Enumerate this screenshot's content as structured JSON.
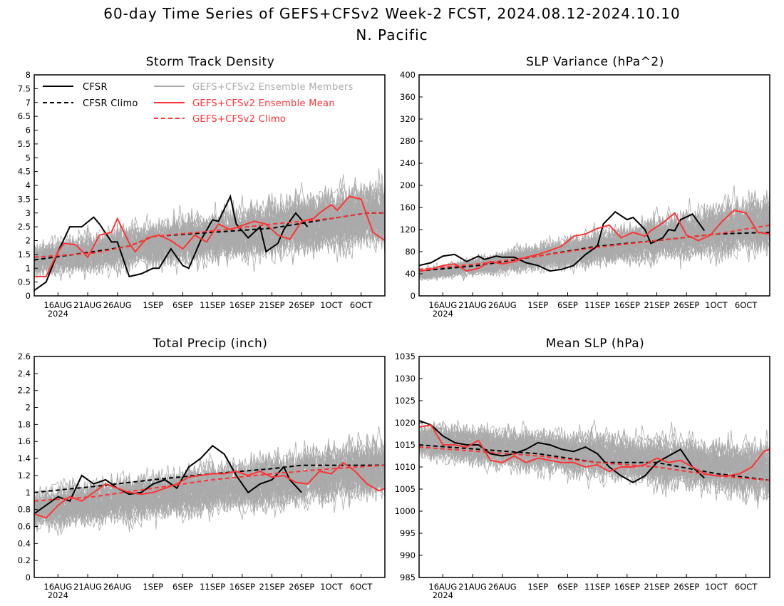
{
  "figure": {
    "title_line1": "60-day Time Series of GEFS+CFSv2 Week-2 FCST, 2024.08.12-2024.10.10",
    "title_line2": "N. Pacific"
  },
  "colors": {
    "cfsr": "#000000",
    "members": "#aaaaaa",
    "ens_mean": "#ff3333",
    "frame": "#000000"
  },
  "legend": {
    "cfsr": "CFSR",
    "cfsr_climo": "CFSR Climo",
    "members": "GEFS+CFSv2 Ensemble Members",
    "ens_mean": "GEFS+CFSv2 Ensemble Mean",
    "ens_climo": "GEFS+CFSv2 Climo"
  },
  "x_axis": {
    "tick_labels": [
      "16AUG",
      "21AUG",
      "26AUG",
      "1SEP",
      "6SEP",
      "11SEP",
      "16SEP",
      "21SEP",
      "26SEP",
      "1OCT",
      "6OCT"
    ],
    "tick_days": [
      4,
      9,
      14,
      20,
      25,
      30,
      35,
      40,
      45,
      50,
      55
    ],
    "year_label": "2024",
    "day_range": [
      0,
      59
    ]
  },
  "chart_data": [
    {
      "type": "line",
      "title": "Storm Track Density",
      "ylim": [
        0,
        8
      ],
      "yticks": [
        "0",
        "0.5",
        "1",
        "1.5",
        "2",
        "2.5",
        "3",
        "3.5",
        "4",
        "4.5",
        "5",
        "5.5",
        "6",
        "6.5",
        "7",
        "7.5",
        "8"
      ],
      "ytick_values": [
        0,
        0.5,
        1,
        1.5,
        2,
        2.5,
        3,
        3.5,
        4,
        4.5,
        5,
        5.5,
        6,
        6.5,
        7,
        7.5,
        8
      ],
      "members_band": {
        "center": [
          1.3,
          3.0
        ],
        "spread_start": 0.8,
        "spread_end": 1.6
      },
      "series": [
        {
          "role": "cfsr",
          "x": [
            0,
            2,
            4,
            6,
            8,
            10,
            11,
            13,
            14,
            16,
            18,
            20,
            21,
            23,
            25,
            26,
            28,
            30,
            31,
            33,
            34,
            36,
            38,
            39,
            41,
            42,
            44,
            46
          ],
          "y": [
            0.2,
            0.5,
            1.6,
            2.5,
            2.5,
            2.85,
            2.6,
            1.95,
            1.95,
            0.7,
            0.8,
            1.0,
            1.0,
            1.7,
            1.1,
            1.0,
            2.0,
            2.75,
            2.7,
            3.6,
            2.6,
            2.1,
            2.5,
            1.6,
            1.9,
            2.4,
            3.0,
            2.5
          ]
        },
        {
          "role": "cfsr_climo",
          "x": [
            0,
            10,
            16,
            20,
            30,
            40,
            50,
            56,
            59
          ],
          "y": [
            1.3,
            1.6,
            1.8,
            2.15,
            2.3,
            2.45,
            2.8,
            3.0,
            3.0
          ]
        },
        {
          "role": "ens_mean",
          "x": [
            0,
            2,
            4,
            5,
            7,
            9,
            11,
            13,
            14,
            16,
            17,
            19,
            21,
            23,
            25,
            27,
            29,
            31,
            33,
            35,
            37,
            39,
            41,
            43,
            45,
            47,
            48,
            50,
            51,
            53,
            55,
            57,
            59
          ],
          "y": [
            0.7,
            0.7,
            1.6,
            1.9,
            1.85,
            1.4,
            2.2,
            2.3,
            2.8,
            1.9,
            1.6,
            2.1,
            2.2,
            2.0,
            1.7,
            2.2,
            1.95,
            2.6,
            2.4,
            2.55,
            2.7,
            2.6,
            2.2,
            2.05,
            2.7,
            2.8,
            3.0,
            3.3,
            3.1,
            3.6,
            3.5,
            2.3,
            2.0
          ]
        },
        {
          "role": "ens_climo",
          "x": [
            0,
            10,
            16,
            20,
            30,
            40,
            50,
            56,
            59
          ],
          "y": [
            1.4,
            1.55,
            1.8,
            2.15,
            2.35,
            2.6,
            2.8,
            3.0,
            3.0
          ]
        }
      ]
    },
    {
      "type": "line",
      "title": "SLP Variance (hPa^2)",
      "ylim": [
        0,
        400
      ],
      "yticks": [
        "0",
        "40",
        "80",
        "120",
        "160",
        "200",
        "240",
        "280",
        "320",
        "360",
        "400"
      ],
      "ytick_values": [
        0,
        40,
        80,
        120,
        160,
        200,
        240,
        280,
        320,
        360,
        400
      ],
      "members_band": {
        "center": [
          38,
          135
        ],
        "spread_start": 12,
        "spread_end": 70
      },
      "series": [
        {
          "role": "cfsr",
          "x": [
            0,
            2,
            4,
            6,
            8,
            10,
            11,
            13,
            14,
            16,
            18,
            20,
            22,
            24,
            26,
            28,
            30,
            31,
            33,
            35,
            36,
            38,
            39,
            41,
            42,
            43,
            44,
            46,
            48
          ],
          "y": [
            55,
            60,
            72,
            75,
            62,
            72,
            66,
            72,
            70,
            70,
            60,
            55,
            45,
            48,
            55,
            75,
            90,
            130,
            152,
            138,
            142,
            120,
            95,
            105,
            120,
            118,
            138,
            148,
            118
          ]
        },
        {
          "role": "cfsr_climo",
          "x": [
            0,
            10,
            20,
            30,
            40,
            50,
            59
          ],
          "y": [
            45,
            55,
            72,
            90,
            100,
            112,
            115
          ]
        },
        {
          "role": "ens_mean",
          "x": [
            0,
            2,
            4,
            6,
            8,
            10,
            12,
            14,
            16,
            18,
            20,
            22,
            24,
            26,
            28,
            30,
            32,
            34,
            36,
            38,
            39,
            41,
            43,
            45,
            47,
            49,
            51,
            53,
            55,
            57,
            59
          ],
          "y": [
            45,
            48,
            55,
            58,
            45,
            50,
            62,
            58,
            62,
            70,
            75,
            82,
            90,
            108,
            112,
            122,
            128,
            105,
            115,
            108,
            118,
            132,
            150,
            110,
            100,
            110,
            135,
            155,
            150,
            115,
            112
          ]
        },
        {
          "role": "ens_climo",
          "x": [
            0,
            10,
            20,
            30,
            40,
            50,
            59
          ],
          "y": [
            48,
            58,
            72,
            88,
            100,
            112,
            128
          ]
        }
      ]
    },
    {
      "type": "line",
      "title": "Total Precip (inch)",
      "ylim": [
        0,
        2.6
      ],
      "yticks": [
        "0",
        "0.2",
        "0.4",
        "0.6",
        "0.8",
        "1",
        "1.2",
        "1.4",
        "1.6",
        "1.8",
        "2",
        "2.2",
        "2.4",
        "2.6"
      ],
      "ytick_values": [
        0,
        0.2,
        0.4,
        0.6,
        0.8,
        1,
        1.2,
        1.4,
        1.6,
        1.8,
        2,
        2.2,
        2.4,
        2.6
      ],
      "members_band": {
        "center": [
          0.8,
          1.3
        ],
        "spread_start": 0.3,
        "spread_end": 0.45
      },
      "series": [
        {
          "role": "cfsr",
          "x": [
            0,
            2,
            4,
            6,
            8,
            10,
            12,
            14,
            16,
            18,
            20,
            22,
            24,
            26,
            28,
            30,
            32,
            34,
            36,
            38,
            40,
            42,
            43,
            45
          ],
          "y": [
            0.75,
            0.85,
            0.95,
            0.9,
            1.2,
            1.1,
            1.15,
            1.05,
            0.98,
            1.0,
            1.1,
            1.15,
            1.05,
            1.3,
            1.4,
            1.55,
            1.45,
            1.2,
            1.0,
            1.1,
            1.15,
            1.3,
            1.15,
            1.0
          ]
        },
        {
          "role": "cfsr_climo",
          "x": [
            0,
            10,
            20,
            30,
            40,
            45,
            50,
            59
          ],
          "y": [
            1.0,
            1.07,
            1.15,
            1.22,
            1.28,
            1.32,
            1.32,
            1.32
          ]
        },
        {
          "role": "ens_mean",
          "x": [
            0,
            2,
            4,
            6,
            8,
            10,
            12,
            14,
            16,
            18,
            20,
            22,
            24,
            26,
            28,
            30,
            32,
            34,
            36,
            38,
            40,
            42,
            44,
            46,
            48,
            50,
            52,
            54,
            56,
            58,
            59
          ],
          "y": [
            0.75,
            0.7,
            0.85,
            0.95,
            0.9,
            1.0,
            1.1,
            1.05,
            1.0,
            0.98,
            1.0,
            1.05,
            1.1,
            1.18,
            1.2,
            1.22,
            1.22,
            1.25,
            1.2,
            1.25,
            1.18,
            1.2,
            1.12,
            1.1,
            1.25,
            1.22,
            1.35,
            1.25,
            1.1,
            1.02,
            1.05
          ]
        },
        {
          "role": "ens_climo",
          "x": [
            0,
            10,
            20,
            30,
            40,
            50,
            59
          ],
          "y": [
            0.9,
            0.95,
            1.05,
            1.15,
            1.22,
            1.28,
            1.32
          ]
        }
      ]
    },
    {
      "type": "line",
      "title": "Mean SLP (hPa)",
      "ylim": [
        985,
        1035
      ],
      "yticks": [
        "985",
        "990",
        "995",
        "1000",
        "1005",
        "1010",
        "1015",
        "1020",
        "1025",
        "1030",
        "1035"
      ],
      "ytick_values": [
        985,
        990,
        995,
        1000,
        1005,
        1010,
        1015,
        1020,
        1025,
        1030,
        1035
      ],
      "members_band": {
        "center": [
          1016,
          1009
        ],
        "spread_start": 5,
        "spread_end": 8
      },
      "series": [
        {
          "role": "cfsr",
          "x": [
            0,
            2,
            4,
            6,
            8,
            10,
            12,
            14,
            16,
            18,
            20,
            22,
            24,
            26,
            28,
            30,
            32,
            34,
            36,
            38,
            40,
            42,
            44,
            46,
            48
          ],
          "y": [
            1020.5,
            1019.5,
            1017,
            1015.5,
            1015,
            1015,
            1013,
            1012.5,
            1013,
            1014,
            1015.5,
            1015,
            1014,
            1013.5,
            1014.5,
            1013,
            1010,
            1008,
            1006.5,
            1008,
            1011,
            1012.5,
            1014,
            1010,
            1007.5
          ]
        },
        {
          "role": "cfsr_climo",
          "x": [
            0,
            10,
            20,
            30,
            40,
            50,
            59
          ],
          "y": [
            1015,
            1014,
            1013,
            1011,
            1011,
            1008.5,
            1007
          ]
        },
        {
          "role": "ens_mean",
          "x": [
            0,
            2,
            4,
            6,
            8,
            10,
            12,
            14,
            16,
            18,
            20,
            22,
            24,
            26,
            28,
            30,
            32,
            34,
            36,
            38,
            40,
            42,
            44,
            46,
            48,
            50,
            52,
            54,
            56,
            58,
            59
          ],
          "y": [
            1019,
            1019.5,
            1015,
            1015,
            1014.5,
            1016,
            1011.5,
            1011,
            1012.5,
            1011,
            1012,
            1011.5,
            1011,
            1011,
            1010,
            1010.5,
            1009,
            1010,
            1010,
            1010.5,
            1012,
            1011,
            1011.5,
            1010,
            1008.5,
            1008,
            1008,
            1008.5,
            1010,
            1013.5,
            1014
          ]
        },
        {
          "role": "ens_climo",
          "x": [
            0,
            10,
            20,
            30,
            40,
            50,
            59
          ],
          "y": [
            1014.5,
            1013.5,
            1012.5,
            1011,
            1010,
            1008,
            1007
          ]
        }
      ]
    }
  ]
}
